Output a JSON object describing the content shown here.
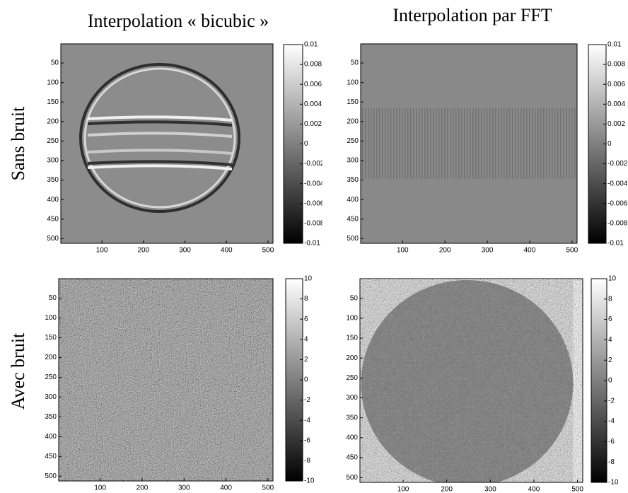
{
  "column_titles": [
    "Interpolation « bicubic »",
    "Interpolation par FFT"
  ],
  "row_titles": [
    "Sans bruit",
    "Avec bruit"
  ],
  "chart_data": [
    {
      "type": "image",
      "xlim": [
        1,
        512
      ],
      "ylim": [
        1,
        512
      ],
      "y_reversed": true,
      "xticks": [
        100,
        200,
        300,
        400,
        500
      ],
      "yticks": [
        50,
        100,
        150,
        200,
        250,
        300,
        350,
        400,
        450,
        500
      ],
      "clim": [
        -0.01,
        0.01
      ],
      "cticks": [
        0.01,
        0.008,
        0.006,
        0.004,
        0.002,
        0,
        -0.002,
        -0.004,
        -0.006,
        -0.008,
        -0.01
      ],
      "colormap": "gray"
    },
    {
      "type": "image",
      "xlim": [
        1,
        512
      ],
      "ylim": [
        1,
        512
      ],
      "y_reversed": true,
      "xticks": [
        100,
        200,
        300,
        400,
        500
      ],
      "yticks": [
        50,
        100,
        150,
        200,
        250,
        300,
        350,
        400,
        450,
        500
      ],
      "clim": [
        -0.01,
        0.01
      ],
      "cticks": [
        0.01,
        0.008,
        0.006,
        0.004,
        0.002,
        0,
        -0.002,
        -0.004,
        -0.006,
        -0.008,
        -0.01
      ],
      "colormap": "gray"
    },
    {
      "type": "image",
      "xlim": [
        1,
        512
      ],
      "ylim": [
        1,
        512
      ],
      "y_reversed": true,
      "xticks": [
        100,
        200,
        300,
        400,
        500
      ],
      "yticks": [
        50,
        100,
        150,
        200,
        250,
        300,
        350,
        400,
        450,
        500
      ],
      "clim": [
        -10,
        10
      ],
      "cticks": [
        10,
        8,
        6,
        4,
        2,
        0,
        -2,
        -4,
        -6,
        -8,
        -10
      ],
      "colormap": "gray"
    },
    {
      "type": "image",
      "xlim": [
        1,
        512
      ],
      "ylim": [
        1,
        512
      ],
      "y_reversed": true,
      "xticks": [
        100,
        200,
        300,
        400,
        500
      ],
      "yticks": [
        50,
        100,
        150,
        200,
        250,
        300,
        350,
        400,
        450,
        500
      ],
      "clim": [
        -10,
        10
      ],
      "cticks": [
        10,
        8,
        6,
        4,
        2,
        0,
        -2,
        -4,
        -6,
        -8,
        -10
      ],
      "colormap": "gray"
    }
  ]
}
